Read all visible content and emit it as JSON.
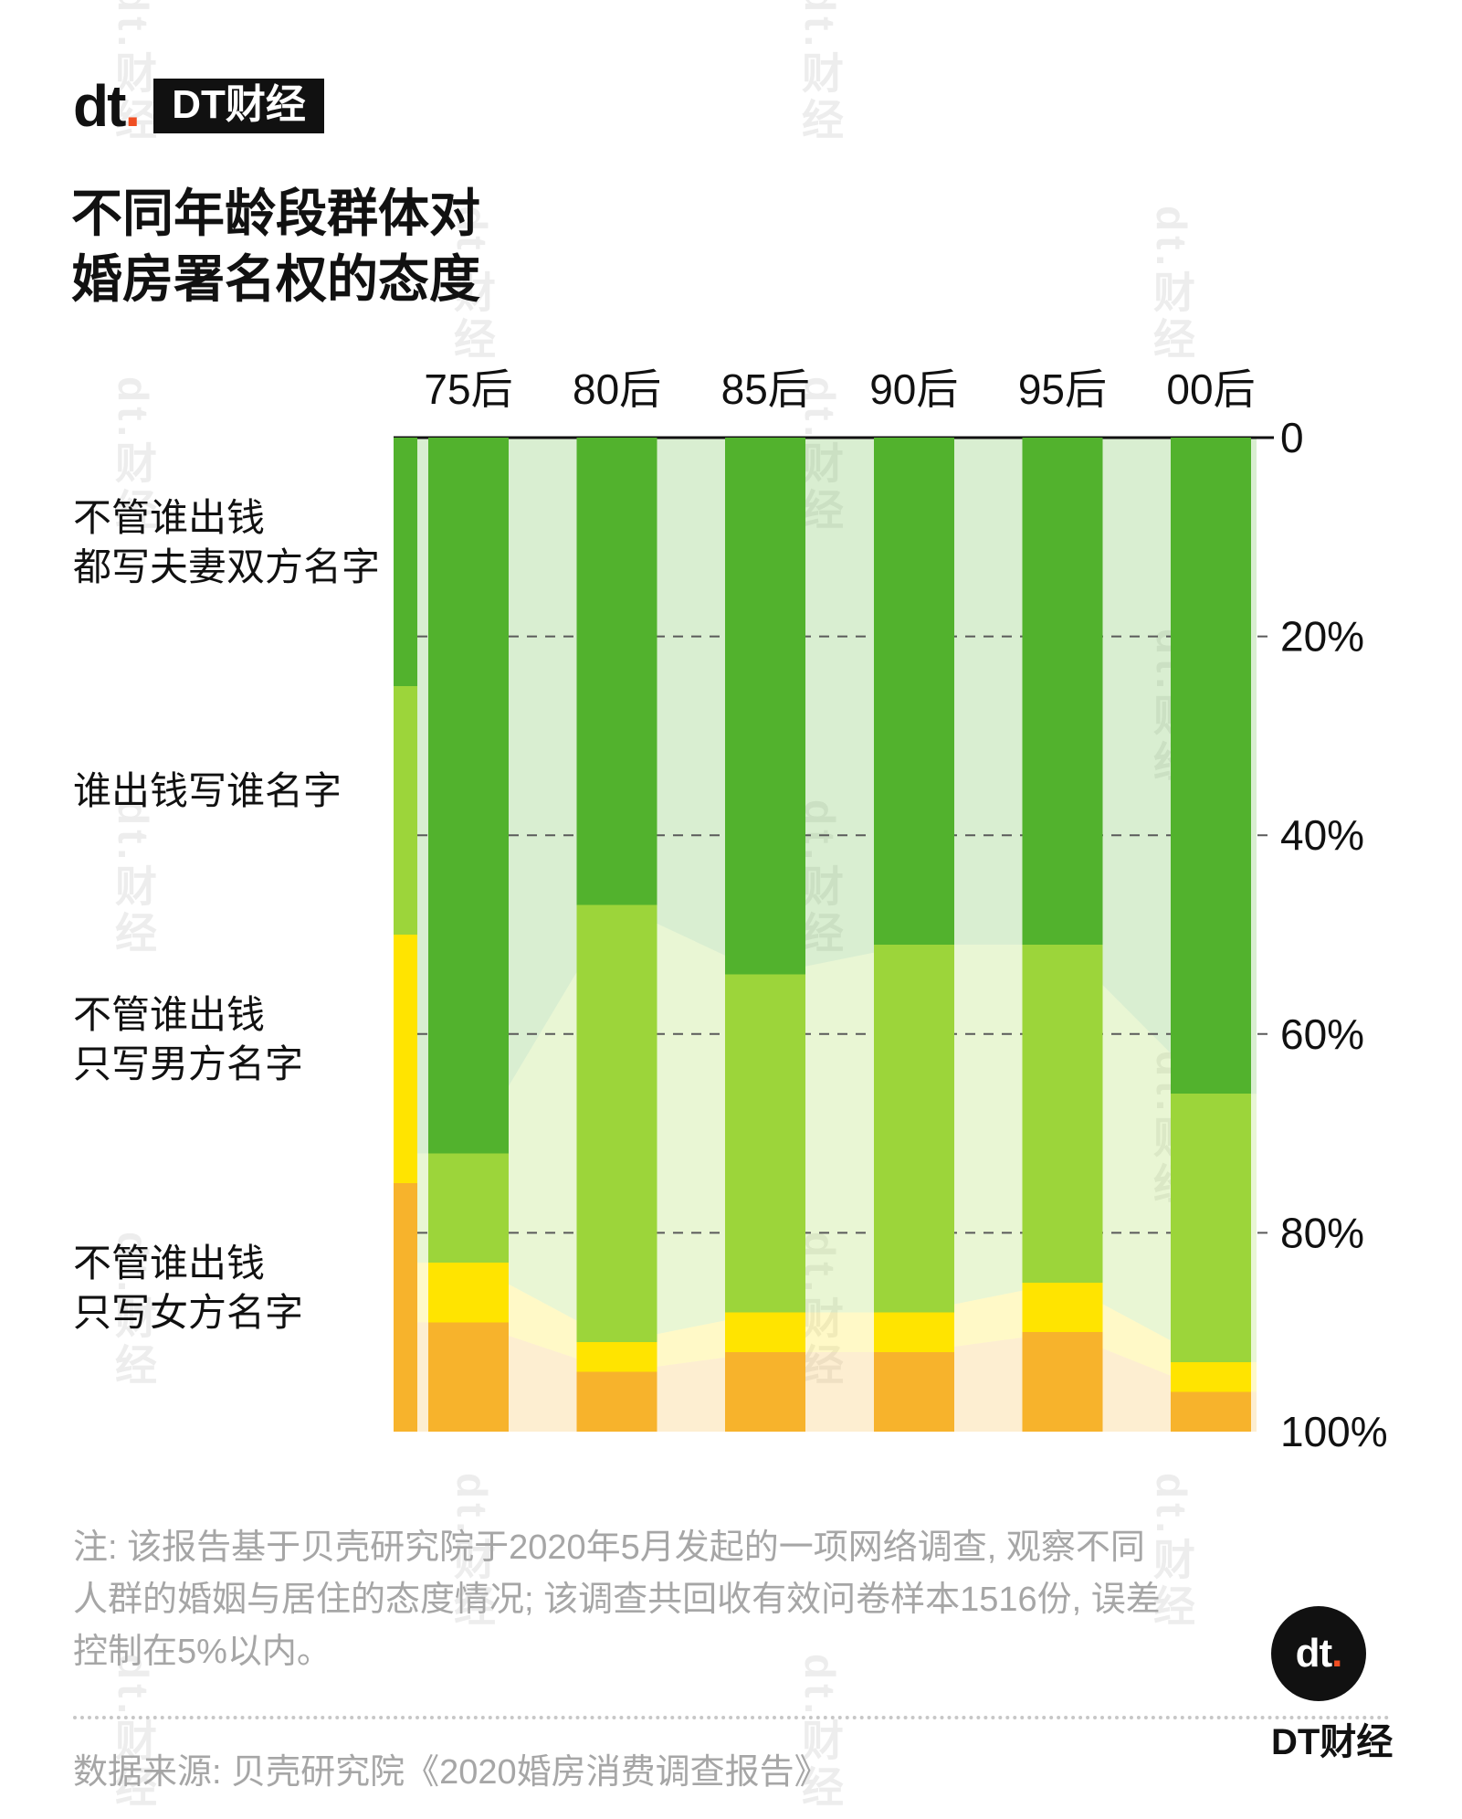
{
  "header": {
    "logo": {
      "mark": "dt",
      "dot": ".",
      "box": "DT财经"
    },
    "title_line1": "不同年龄段群体对",
    "title_line2": "婚房署名权的态度"
  },
  "chart_data": {
    "type": "bar",
    "subtype": "stacked-percentage-columns-with-pale-area-background",
    "categories": [
      "75后",
      "80后",
      "85后",
      "90后",
      "95后",
      "00后"
    ],
    "series": [
      {
        "name": "不管谁出钱\n都写夫妻双方名字",
        "color": "#52b22d",
        "values": [
          72,
          47,
          54,
          51,
          51,
          66
        ]
      },
      {
        "name": "谁出钱写谁名字",
        "color": "#9cd53a",
        "values": [
          11,
          44,
          34,
          37,
          34,
          27
        ]
      },
      {
        "name": "不管谁出钱\n只写男方名字",
        "color": "#ffe400",
        "values": [
          6,
          3,
          4,
          4,
          5,
          3
        ]
      },
      {
        "name": "不管谁出钱\n只写女方名字",
        "color": "#f7b32c",
        "values": [
          11,
          6,
          8,
          8,
          10,
          4
        ]
      }
    ],
    "y_ticks": [
      "0",
      "20%",
      "40%",
      "60%",
      "80%",
      "100%"
    ],
    "y_tick_values": [
      0,
      20,
      40,
      60,
      80,
      100
    ],
    "ylim": [
      0,
      100
    ],
    "y_axis_side": "right",
    "y_axis_inverted": true,
    "grid": "dashed horizontal lines at 20/40/60/80, solid axis line at 0 (top)",
    "legend_position": "left color strip with category labels"
  },
  "footer": {
    "note_lines": [
      "注: 该报告基于贝壳研究院于2020年5月发起的一项网络调查, 观察不同",
      "人群的婚姻与居住的态度情况; 该调查共回收有效问卷样本1516份, 误差",
      "控制在5%以内。"
    ],
    "source": "数据来源: 贝壳研究院《2020婚房消费调查报告》",
    "logo": {
      "mark": "dt",
      "dot": ".",
      "box": "DT财经"
    }
  },
  "watermark": {
    "text": "dt.财经"
  }
}
